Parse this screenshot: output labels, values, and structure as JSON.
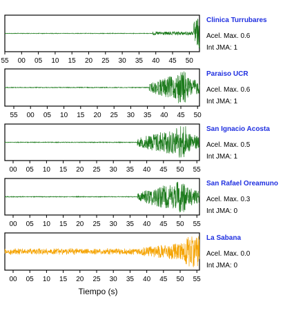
{
  "chart_data": {
    "type": "line",
    "xlabel": "Tiempo (s)",
    "stations": [
      {
        "name": "Clinica Turrubares",
        "acel_label": "Acel. Max.",
        "acel": "0.6",
        "int_label": "Int JMA:",
        "int": "1",
        "color": "#1b7a1b",
        "ticks": [
          "55",
          "00",
          "05",
          "10",
          "15",
          "20",
          "25",
          "30",
          "35",
          "40",
          "45",
          "50"
        ]
      },
      {
        "name": "Paraiso UCR",
        "acel_label": "Acel. Max.",
        "acel": "0.6",
        "int_label": "Int JMA:",
        "int": "1",
        "color": "#1b7a1b",
        "ticks": [
          "55",
          "00",
          "05",
          "10",
          "15",
          "20",
          "25",
          "30",
          "35",
          "40",
          "45",
          "50"
        ]
      },
      {
        "name": "San Ignacio Acosta",
        "acel_label": "Acel. Max.",
        "acel": "0.5",
        "int_label": "Int JMA:",
        "int": "1",
        "color": "#1b7a1b",
        "ticks": [
          "00",
          "05",
          "10",
          "15",
          "20",
          "25",
          "30",
          "35",
          "40",
          "45",
          "50",
          "55"
        ]
      },
      {
        "name": "San Rafael Oreamuno",
        "acel_label": "Acel. Max.",
        "acel": "0.3",
        "int_label": "Int JMA:",
        "int": "0",
        "color": "#1b7a1b",
        "ticks": [
          "00",
          "05",
          "10",
          "15",
          "20",
          "25",
          "30",
          "35",
          "40",
          "45",
          "50",
          "55"
        ]
      },
      {
        "name": "La Sabana",
        "acel_label": "Acel. Max.",
        "acel": "0.0",
        "int_label": "Int JMA:",
        "int": "0",
        "color": "#f5a300",
        "ticks": [
          "00",
          "05",
          "10",
          "15",
          "20",
          "25",
          "30",
          "35",
          "40",
          "45",
          "50",
          "55"
        ]
      }
    ]
  }
}
